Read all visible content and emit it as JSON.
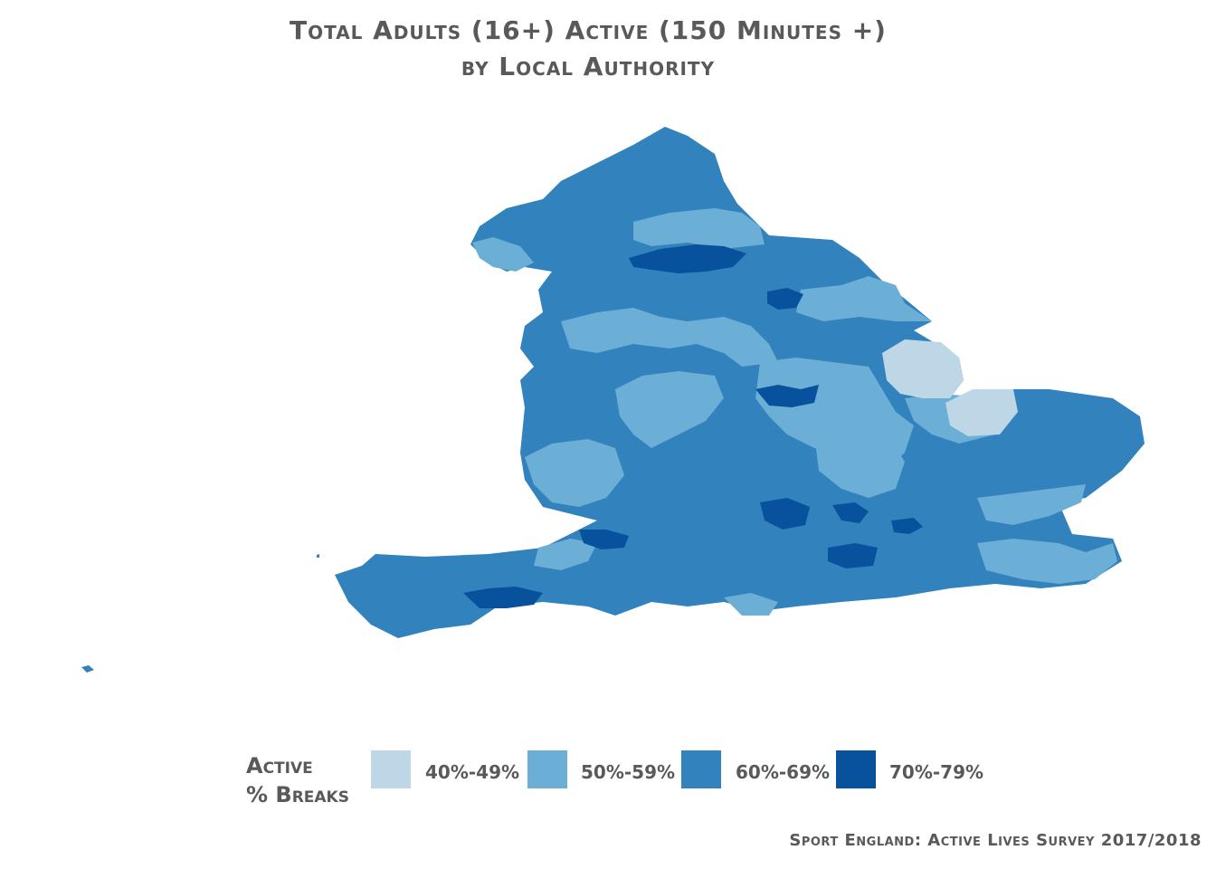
{
  "title_line1": "Total Adults (16+) Active (150 Minutes +)",
  "title_line2": "by Local Authority",
  "legend": {
    "title_line1": "Active",
    "title_line2": "% Breaks",
    "items": [
      {
        "label": "40%-49%",
        "color": "#bdd7e7"
      },
      {
        "label": "50%-59%",
        "color": "#6baed6"
      },
      {
        "label": "60%-69%",
        "color": "#3182bd"
      },
      {
        "label": "70%-79%",
        "color": "#08519c"
      }
    ]
  },
  "source": "Sport England: Active Lives Survey 2017/2018"
}
